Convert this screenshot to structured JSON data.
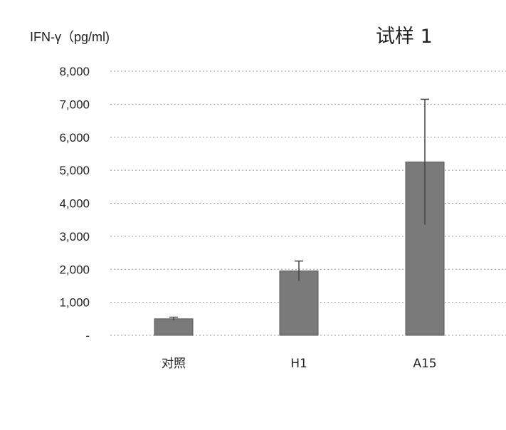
{
  "chart_data": {
    "type": "bar",
    "title": "试样 1",
    "ylabel": "IFN-γ（pg/ml)",
    "xlabel": "",
    "categories": [
      "对照",
      "H1",
      "A15"
    ],
    "values": [
      500,
      1950,
      5250
    ],
    "errors": [
      50,
      300,
      1900
    ],
    "ylim": [
      0,
      8000
    ],
    "yticks": [
      0,
      1000,
      2000,
      3000,
      4000,
      5000,
      6000,
      7000,
      8000
    ],
    "ytick_labels": [
      "-",
      "1,000",
      "2,000",
      "3,000",
      "4,000",
      "5,000",
      "6,000",
      "7,000",
      "8,000"
    ],
    "grid": true,
    "bar_color": "#7a7a7a"
  }
}
